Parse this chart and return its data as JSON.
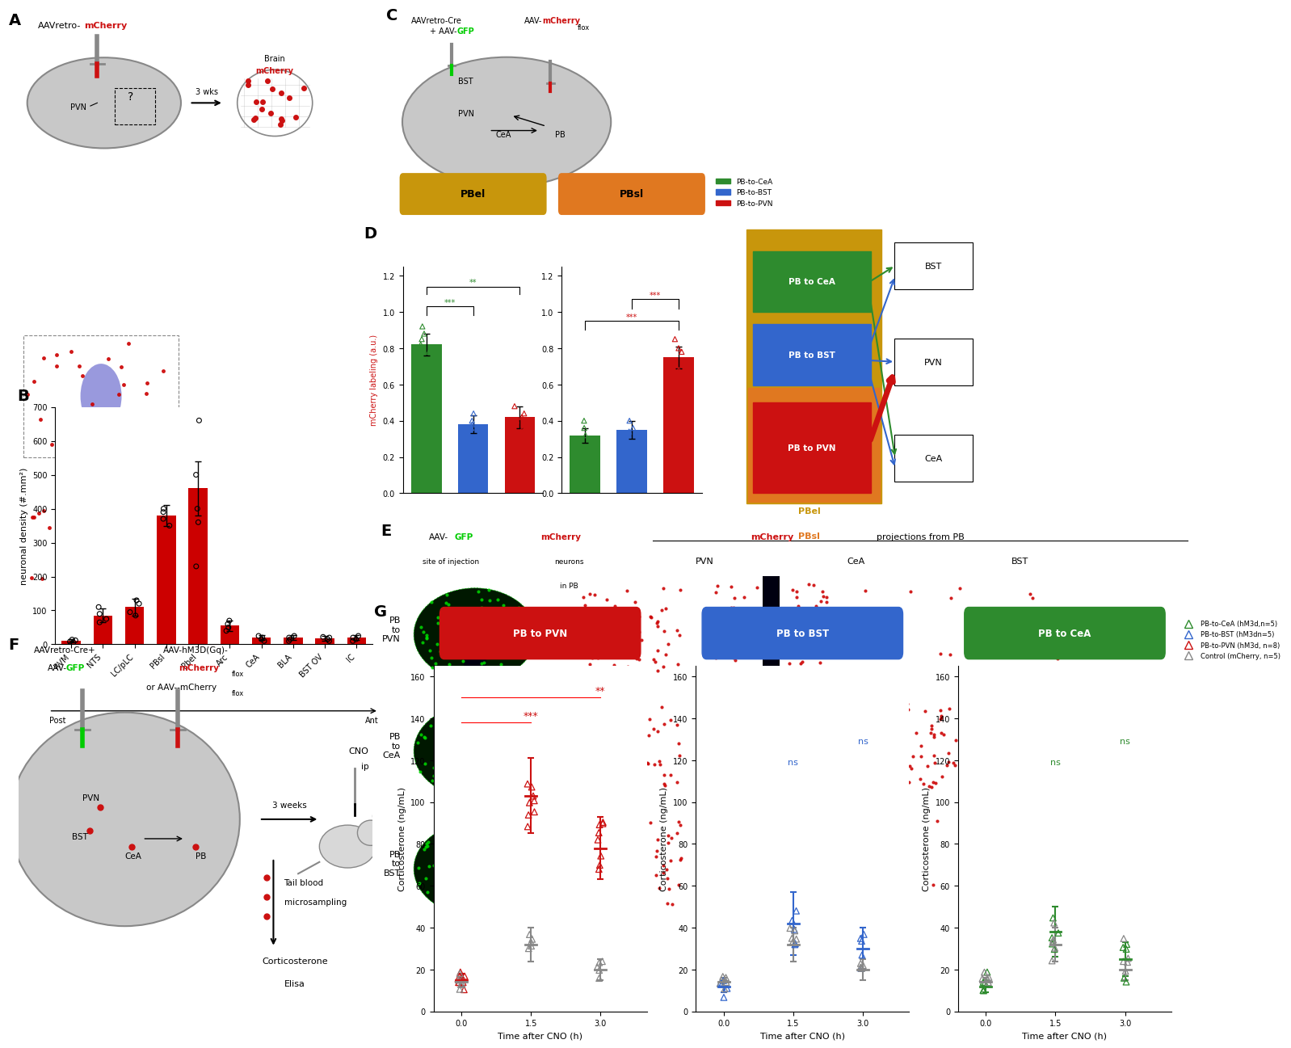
{
  "panel_B": {
    "categories": [
      "RVM",
      "NTS",
      "LC/pLC",
      "PBsl",
      "Pbel",
      "Arc",
      "CeA",
      "BLA",
      "BST OV",
      "IC"
    ],
    "means": [
      10,
      85,
      110,
      380,
      460,
      55,
      20,
      20,
      18,
      20
    ],
    "errors": [
      5,
      20,
      25,
      30,
      80,
      15,
      8,
      8,
      7,
      8
    ],
    "scatter": [
      [
        8,
        12,
        6,
        14
      ],
      [
        65,
        90,
        110,
        75
      ],
      [
        85,
        130,
        95,
        120
      ],
      [
        350,
        400,
        370,
        390
      ],
      [
        230,
        360,
        400,
        500,
        660
      ],
      [
        40,
        60,
        50,
        70
      ],
      [
        10,
        25,
        15,
        20
      ],
      [
        10,
        25,
        15,
        20
      ],
      [
        10,
        20,
        15,
        22
      ],
      [
        10,
        25,
        15,
        20
      ]
    ],
    "bar_color": "#cc0000",
    "ylabel": "neuronal density (#.mm²)",
    "xlabel_post": "Post",
    "xlabel_ant": "Ant"
  },
  "panel_D_PBel": {
    "groups": [
      "PB-to-CeA",
      "PB-to-BST",
      "PB-to-PVN"
    ],
    "means": [
      0.82,
      0.38,
      0.42
    ],
    "errors": [
      0.06,
      0.05,
      0.06
    ],
    "colors": [
      "#2e8b2e",
      "#3366cc",
      "#cc1111"
    ],
    "scatter_y": [
      [
        0.72,
        0.78,
        0.82,
        0.88,
        0.92,
        0.85
      ],
      [
        0.3,
        0.36,
        0.4,
        0.44,
        0.38
      ],
      [
        0.35,
        0.4,
        0.44,
        0.48,
        0.42
      ]
    ],
    "sig1": "***",
    "sig2": "**",
    "title": "PBel",
    "title_bg": "#c8960c",
    "ylabel": "mCherry labeling (a.u.)"
  },
  "panel_D_PBsl": {
    "groups": [
      "PB-to-CeA",
      "PB-to-BST",
      "PB-to-PVN"
    ],
    "means": [
      0.32,
      0.35,
      0.75
    ],
    "errors": [
      0.04,
      0.05,
      0.06
    ],
    "colors": [
      "#2e8b2e",
      "#3366cc",
      "#cc1111"
    ],
    "scatter_y": [
      [
        0.24,
        0.28,
        0.32,
        0.36,
        0.4
      ],
      [
        0.26,
        0.32,
        0.36,
        0.4,
        0.34
      ],
      [
        0.62,
        0.68,
        0.72,
        0.8,
        0.85,
        0.78
      ]
    ],
    "sig1": "***",
    "sig2": "***",
    "title": "PBsl",
    "title_bg": "#e07820",
    "ylabel": ""
  },
  "panel_G_PVN": {
    "time_points": [
      0,
      1.5,
      3
    ],
    "hM3d_means": [
      15,
      103,
      78
    ],
    "hM3d_errors": [
      3,
      18,
      15
    ],
    "ctrl_means": [
      14,
      32,
      20
    ],
    "ctrl_errors": [
      2,
      8,
      5
    ],
    "hM3d_color": "#cc1111",
    "ctrl_color": "#888888",
    "title": "PB to PVN",
    "title_bg": "#cc1111",
    "ylabel": "Corticosterone (ng/mL)",
    "xlabel": "Time after CNO (h)",
    "sig": "***",
    "sig2": "**"
  },
  "panel_G_BST": {
    "time_points": [
      0,
      1.5,
      3
    ],
    "hM3d_means": [
      12,
      42,
      30
    ],
    "hM3d_errors": [
      3,
      15,
      10
    ],
    "ctrl_means": [
      14,
      32,
      20
    ],
    "ctrl_errors": [
      2,
      8,
      5
    ],
    "hM3d_color": "#3366cc",
    "ctrl_color": "#888888",
    "title": "PB to BST",
    "title_bg": "#3366cc",
    "ylabel": "Corticosterone (ng/mL)",
    "xlabel": "Time after CNO (h)",
    "sig1": "ns",
    "sig2": "ns"
  },
  "panel_G_CeA": {
    "time_points": [
      0,
      1.5,
      3
    ],
    "hM3d_means": [
      12,
      38,
      25
    ],
    "hM3d_errors": [
      3,
      12,
      8
    ],
    "ctrl_means": [
      14,
      32,
      20
    ],
    "ctrl_errors": [
      2,
      8,
      5
    ],
    "hM3d_color": "#2e8b2e",
    "ctrl_color": "#888888",
    "title": "PB to CeA",
    "title_bg": "#2e8b2e",
    "ylabel": "Corticosterone (ng/mL)",
    "xlabel": "Time after CNO (h)",
    "sig1": "ns",
    "sig2": "ns"
  },
  "legend_G": {
    "labels": [
      "PB-to-CeA (hM3d,n=5)",
      "PB-to-BST (hM3dn=5)",
      "PB-to-PVN (hM3d, n=8)",
      "Control (mCherry, n=5)"
    ],
    "colors": [
      "#2e8b2e",
      "#3366cc",
      "#cc1111",
      "#888888"
    ]
  },
  "colors": {
    "red": "#cc1111",
    "green": "#2e8b2e",
    "blue": "#3366cc",
    "gray": "#888888",
    "gold": "#c8960c",
    "orange": "#e07820",
    "black": "#000000",
    "white": "#ffffff"
  }
}
